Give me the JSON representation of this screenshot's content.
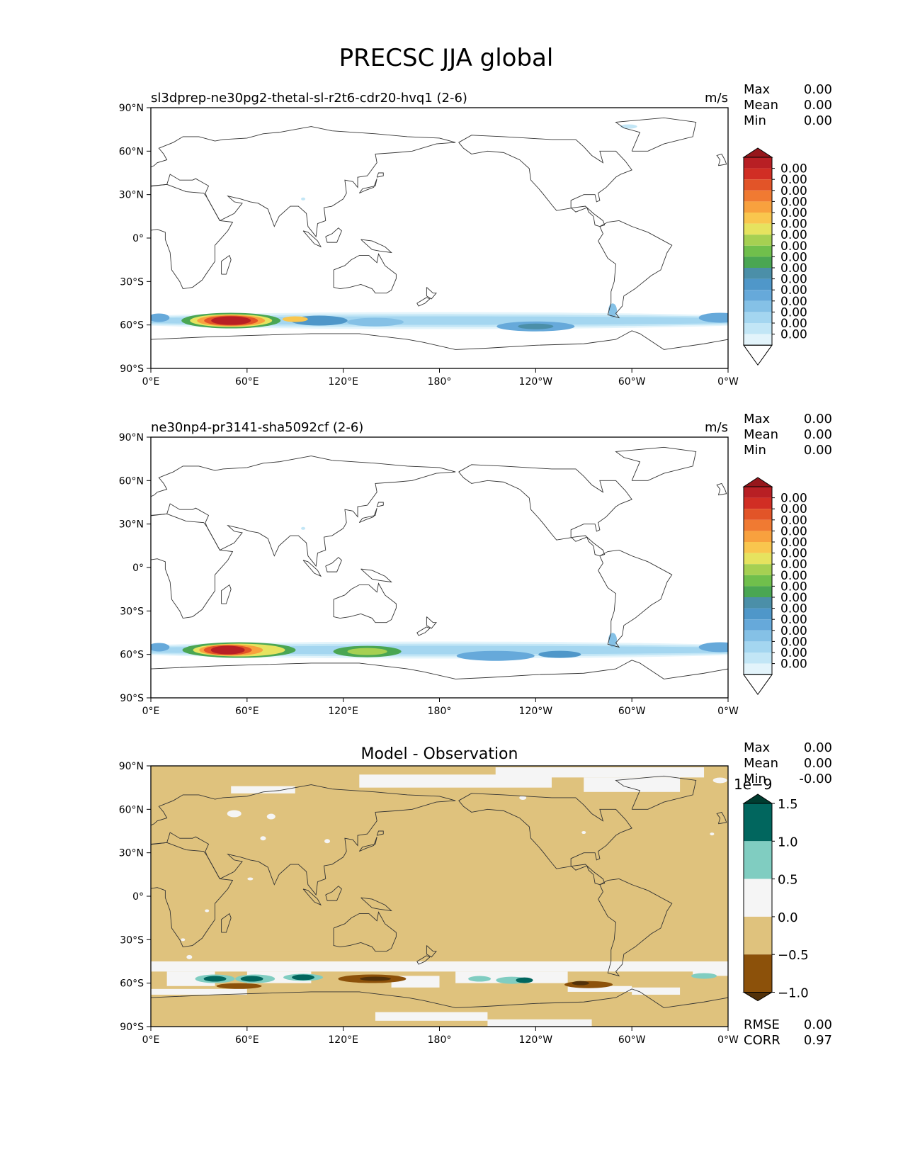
{
  "figure": {
    "title": "PRECSC JJA global"
  },
  "axes": {
    "lat_ticks": [
      "90°N",
      "60°N",
      "30°N",
      "0°",
      "30°S",
      "60°S",
      "90°S"
    ],
    "lon_ticks": [
      "0°E",
      "60°E",
      "120°E",
      "180°",
      "120°W",
      "60°W",
      "0°W"
    ]
  },
  "panels": [
    {
      "title": "sl3dprep-ne30pg2-thetal-sl-r2t6-cdr20-hvq1 (2-6)",
      "units": "m/s",
      "stats": [
        {
          "label": "Max",
          "value": "0.00"
        },
        {
          "label": "Mean",
          "value": "0.00"
        },
        {
          "label": "Min",
          "value": "0.00"
        }
      ],
      "colorbar_labels": [
        "0.00",
        "0.00",
        "0.00",
        "0.00",
        "0.00",
        "0.00",
        "0.00",
        "0.00",
        "0.00",
        "0.00",
        "0.00",
        "0.00",
        "0.00",
        "0.00",
        "0.00",
        "0.00"
      ]
    },
    {
      "title": "ne30np4-pr3141-sha5092cf (2-6)",
      "units": "m/s",
      "stats": [
        {
          "label": "Max",
          "value": "0.00"
        },
        {
          "label": "Mean",
          "value": "0.00"
        },
        {
          "label": "Min",
          "value": "0.00"
        }
      ],
      "colorbar_labels": [
        "0.00",
        "0.00",
        "0.00",
        "0.00",
        "0.00",
        "0.00",
        "0.00",
        "0.00",
        "0.00",
        "0.00",
        "0.00",
        "0.00",
        "0.00",
        "0.00",
        "0.00",
        "0.00"
      ]
    },
    {
      "title": "Model - Observation",
      "stats": [
        {
          "label": "Max",
          "value": "0.00"
        },
        {
          "label": "Mean",
          "value": "0.00"
        },
        {
          "label": "Min",
          "value": "-0.00"
        }
      ],
      "scale_exponent": "1e−9",
      "colorbar_labels": [
        "1.5",
        "1.0",
        "0.5",
        "0.0",
        "−0.5",
        "−1.0"
      ],
      "metrics": [
        {
          "label": "RMSE",
          "value": "0.00"
        },
        {
          "label": "CORR",
          "value": "0.97"
        }
      ]
    }
  ],
  "colors": {
    "precip_scale": [
      "#ffffff",
      "#e3f4fb",
      "#c2e6f6",
      "#a4d6f0",
      "#85c1e6",
      "#66a9da",
      "#4f97c9",
      "#4b8fa8",
      "#4aa653",
      "#70bf4c",
      "#a6d052",
      "#e6e35f",
      "#f9c64e",
      "#f8a13e",
      "#f07a32",
      "#e25428",
      "#d12e24",
      "#b81f24",
      "#96161b"
    ],
    "diff_scale": [
      "#523109",
      "#8c510a",
      "#dfc27d",
      "#f5f5f5",
      "#80cdc1",
      "#01665e",
      "#003c30"
    ],
    "land": "#dfc27d"
  },
  "chart_data": [
    {
      "type": "heatmap",
      "map_projection": "PlateCarree, centered 180°",
      "title": "sl3dprep-ne30pg2-thetal-sl-r2t6-cdr20-hvq1 (2-6)",
      "units": "m/s",
      "xlim": [
        0,
        360
      ],
      "ylim": [
        -90,
        90
      ],
      "max": 0.0,
      "mean": 0.0,
      "min": 0.0,
      "features": [
        {
          "name": "Southern Ocean storm-track band",
          "lat_center": -57,
          "lon_range": [
            0,
            360
          ],
          "peak_lon": 40
        }
      ]
    },
    {
      "type": "heatmap",
      "map_projection": "PlateCarree, centered 180°",
      "title": "ne30np4-pr3141-sha5092cf (2-6)",
      "units": "m/s",
      "xlim": [
        0,
        360
      ],
      "ylim": [
        -90,
        90
      ],
      "max": 0.0,
      "mean": 0.0,
      "min": 0.0,
      "features": [
        {
          "name": "Southern Ocean storm-track band",
          "lat_center": -57,
          "lon_range": [
            0,
            360
          ],
          "peak_lon": 45
        }
      ]
    },
    {
      "type": "heatmap",
      "map_projection": "PlateCarree, centered 180°",
      "title": "Model - Observation",
      "xlim": [
        0,
        360
      ],
      "ylim": [
        -90,
        90
      ],
      "colorbar_levels": [
        -1.0,
        -0.5,
        0.0,
        0.5,
        1.0,
        1.5
      ],
      "colorbar_scale": "1e-9",
      "max": 0.0,
      "mean": 0.0,
      "min": -0.0,
      "rmse": 0.0,
      "corr": 0.97
    }
  ]
}
